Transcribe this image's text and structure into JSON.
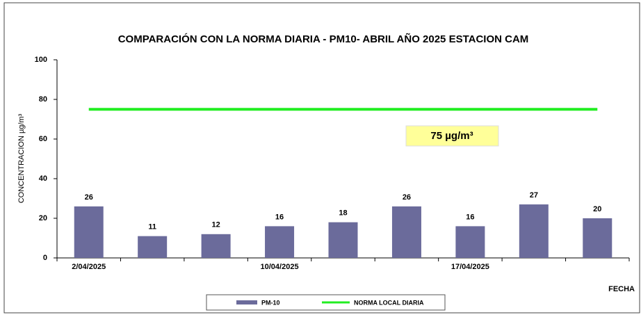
{
  "chart_data": {
    "type": "bar",
    "title": "COMPARACIÓN CON LA NORMA DIARIA - PM10- ABRIL AÑO 2025 ESTACION CAM",
    "y_label": "CONCENTRACION µg/m³",
    "x_label": "FECHA",
    "annotation": "75 µg/m³",
    "categories": [
      "2/04/2025",
      null,
      null,
      "10/04/2025",
      null,
      null,
      "17/04/2025",
      null,
      null
    ],
    "series": [
      {
        "name": "PM-10",
        "color": "#6b6b9b",
        "type": "bar",
        "values": [
          26,
          11,
          12,
          16,
          18,
          26,
          16,
          27,
          20
        ]
      },
      {
        "name": "NORMA LOCAL DIARIA",
        "color": "#22ee22",
        "type": "line",
        "values": [
          75,
          75,
          75,
          75,
          75,
          75,
          75,
          75,
          75
        ]
      }
    ],
    "ylim": [
      0,
      100
    ],
    "yticks": [
      0,
      20,
      40,
      60,
      80,
      100
    ]
  }
}
